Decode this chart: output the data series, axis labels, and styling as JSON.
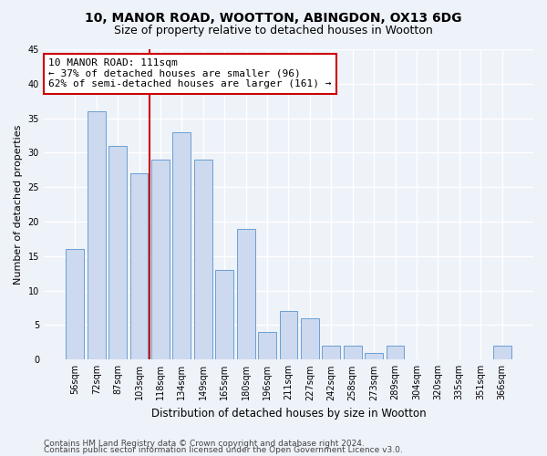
{
  "title1": "10, MANOR ROAD, WOOTTON, ABINGDON, OX13 6DG",
  "title2": "Size of property relative to detached houses in Wootton",
  "xlabel": "Distribution of detached houses by size in Wootton",
  "ylabel": "Number of detached properties",
  "categories": [
    "56sqm",
    "72sqm",
    "87sqm",
    "103sqm",
    "118sqm",
    "134sqm",
    "149sqm",
    "165sqm",
    "180sqm",
    "196sqm",
    "211sqm",
    "227sqm",
    "242sqm",
    "258sqm",
    "273sqm",
    "289sqm",
    "304sqm",
    "320sqm",
    "335sqm",
    "351sqm",
    "366sqm"
  ],
  "values": [
    16,
    36,
    31,
    27,
    29,
    33,
    29,
    13,
    19,
    4,
    7,
    6,
    2,
    2,
    1,
    2,
    0,
    0,
    0,
    0,
    2
  ],
  "bar_color": "#ccd9ee",
  "bar_edge_color": "#6b9fd4",
  "vline_x": 3.5,
  "vline_color": "#cc0000",
  "annotation_text": "10 MANOR ROAD: 111sqm\n← 37% of detached houses are smaller (96)\n62% of semi-detached houses are larger (161) →",
  "annotation_box_color": "#ffffff",
  "annotation_box_edge": "#cc0000",
  "ylim": [
    0,
    45
  ],
  "yticks": [
    0,
    5,
    10,
    15,
    20,
    25,
    30,
    35,
    40,
    45
  ],
  "footer1": "Contains HM Land Registry data © Crown copyright and database right 2024.",
  "footer2": "Contains public sector information licensed under the Open Government Licence v3.0.",
  "bg_color": "#eef2f9",
  "plot_bg_color": "#eef2f9",
  "grid_color": "#ffffff",
  "title1_fontsize": 10,
  "title2_fontsize": 9,
  "xlabel_fontsize": 8.5,
  "ylabel_fontsize": 8,
  "tick_fontsize": 7,
  "annotation_fontsize": 8,
  "footer_fontsize": 6.5
}
